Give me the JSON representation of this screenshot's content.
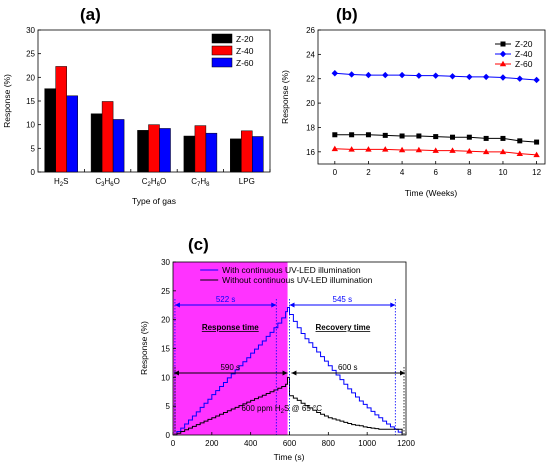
{
  "chart_data": [
    {
      "panel": "(a)",
      "type": "bar",
      "xlabel": "Type of gas",
      "ylabel": "Response (%)",
      "ylim": [
        0,
        30
      ],
      "yticks": [
        "0",
        "5",
        "10",
        "15",
        "20",
        "25",
        "30"
      ],
      "categories": [
        {
          "base": "H",
          "sub1": "2",
          "mid": "S",
          "sub2": "",
          "tail": ""
        },
        {
          "base": "C",
          "sub1": "3",
          "mid": "H",
          "sub2": "6",
          "tail": "O"
        },
        {
          "base": "C",
          "sub1": "2",
          "mid": "H",
          "sub2": "6",
          "tail": "O"
        },
        {
          "base": "C",
          "sub1": "7",
          "mid": "H",
          "sub2": "8",
          "tail": ""
        },
        {
          "base": "LPG",
          "sub1": "",
          "mid": "",
          "sub2": "",
          "tail": ""
        }
      ],
      "legend_position": "top-right",
      "series": [
        {
          "name": "Z-20",
          "color": "#000000",
          "values": [
            17.6,
            12.3,
            8.8,
            7.6,
            7.0
          ]
        },
        {
          "name": "Z-40",
          "color": "#ff0000",
          "values": [
            22.3,
            14.9,
            10.0,
            9.8,
            8.7
          ]
        },
        {
          "name": "Z-60",
          "color": "#0000ff",
          "values": [
            16.1,
            11.1,
            9.2,
            8.2,
            7.5
          ]
        }
      ]
    },
    {
      "panel": "(b)",
      "type": "line",
      "xlabel": "Time (Weeks)",
      "ylabel": "Response (%)",
      "xlim": [
        -1,
        12.5
      ],
      "ylim": [
        15,
        26
      ],
      "xticks": [
        "0",
        "2",
        "4",
        "6",
        "8",
        "10",
        "12"
      ],
      "yticks": [
        "16",
        "18",
        "20",
        "22",
        "24",
        "26"
      ],
      "legend_position": "top-right",
      "series": [
        {
          "name": "Z-20",
          "color": "#000000",
          "marker": "square",
          "x": [
            0,
            1,
            2,
            3,
            4,
            5,
            6,
            7,
            8,
            9,
            10,
            11,
            12
          ],
          "y": [
            17.4,
            17.4,
            17.4,
            17.35,
            17.3,
            17.3,
            17.25,
            17.2,
            17.2,
            17.1,
            17.1,
            16.9,
            16.8
          ]
        },
        {
          "name": "Z-40",
          "color": "#0000ff",
          "marker": "diamond",
          "x": [
            0,
            1,
            2,
            3,
            4,
            5,
            6,
            7,
            8,
            9,
            10,
            11,
            12
          ],
          "y": [
            22.45,
            22.35,
            22.3,
            22.3,
            22.3,
            22.25,
            22.25,
            22.2,
            22.15,
            22.15,
            22.1,
            22.0,
            21.9
          ]
        },
        {
          "name": "Z-60",
          "color": "#ff0000",
          "marker": "triangle",
          "x": [
            0,
            1,
            2,
            3,
            4,
            5,
            6,
            7,
            8,
            9,
            10,
            11,
            12
          ],
          "y": [
            16.25,
            16.2,
            16.2,
            16.2,
            16.15,
            16.15,
            16.1,
            16.1,
            16.05,
            16.0,
            16.0,
            15.85,
            15.75
          ]
        }
      ]
    },
    {
      "panel": "(c)",
      "type": "line",
      "xlabel": "Time (s)",
      "ylabel": "Response (%)",
      "xlim": [
        0,
        1200
      ],
      "ylim": [
        0,
        30
      ],
      "xticks": [
        "0",
        "200",
        "400",
        "600",
        "800",
        "1000",
        "1200"
      ],
      "yticks": [
        "0",
        "5",
        "10",
        "15",
        "20",
        "25",
        "30"
      ],
      "highlight_region": {
        "x_start": 0,
        "x_end": 590,
        "color": "#ff33ff"
      },
      "legend_position": "top-right",
      "annotations": {
        "response_time_blue": "522 s",
        "recovery_time_blue": "545 s",
        "response_time_black": "590 s",
        "recovery_time_black": "600 s",
        "response_label": "Response time",
        "recovery_label": "Recovery time",
        "condition_prefix": "600 ppm H",
        "condition_sub": "2",
        "condition_suffix": "S @ 65 °C"
      },
      "series": [
        {
          "name": "With continuous UV-LED illumination",
          "color": "#0000ff",
          "x": [
            0,
            20,
            40,
            60,
            80,
            100,
            120,
            140,
            160,
            180,
            200,
            220,
            240,
            260,
            280,
            300,
            320,
            340,
            360,
            380,
            400,
            420,
            440,
            460,
            480,
            500,
            520,
            540,
            560,
            580,
            590,
            600,
            620,
            640,
            660,
            680,
            700,
            720,
            740,
            760,
            780,
            800,
            820,
            840,
            860,
            880,
            900,
            920,
            940,
            960,
            980,
            1000,
            1020,
            1040,
            1060,
            1080,
            1100,
            1120,
            1140,
            1160,
            1180
          ],
          "y": [
            0.0,
            0.6,
            1.2,
            1.9,
            2.6,
            3.3,
            4.0,
            4.8,
            5.5,
            6.2,
            7.0,
            7.7,
            8.4,
            9.1,
            9.9,
            10.6,
            11.3,
            12.0,
            12.7,
            13.4,
            14.2,
            14.9,
            15.6,
            16.3,
            17.1,
            17.8,
            18.6,
            19.4,
            20.3,
            21.4,
            22.1,
            20.9,
            19.7,
            18.6,
            17.6,
            16.7,
            16.0,
            15.2,
            14.4,
            13.6,
            12.8,
            12.0,
            11.2,
            10.4,
            9.6,
            8.8,
            8.0,
            7.3,
            6.6,
            5.9,
            5.3,
            4.7,
            4.1,
            3.5,
            3.0,
            2.4,
            1.9,
            1.4,
            1.0,
            0.5,
            0.0
          ]
        },
        {
          "name": "Without continuous UV-LED illumination",
          "color": "#000000",
          "x": [
            0,
            20,
            40,
            60,
            80,
            100,
            120,
            140,
            160,
            180,
            200,
            220,
            240,
            260,
            280,
            300,
            320,
            340,
            360,
            380,
            400,
            420,
            440,
            460,
            480,
            500,
            520,
            540,
            560,
            580,
            590,
            600,
            620,
            640,
            660,
            680,
            700,
            720,
            740,
            760,
            780,
            800,
            820,
            840,
            860,
            880,
            900,
            920,
            940,
            960,
            980,
            1000,
            1020,
            1040,
            1060,
            1080,
            1100,
            1120,
            1140,
            1160,
            1180
          ],
          "y": [
            0.0,
            0.3,
            0.6,
            0.9,
            1.2,
            1.5,
            1.8,
            2.1,
            2.4,
            2.7,
            3.0,
            3.3,
            3.6,
            3.9,
            4.2,
            4.5,
            4.8,
            5.1,
            5.4,
            5.7,
            6.0,
            6.3,
            6.6,
            6.9,
            7.2,
            7.5,
            7.8,
            8.1,
            8.4,
            8.8,
            10.0,
            6.8,
            6.4,
            6.0,
            5.5,
            5.1,
            4.7,
            4.3,
            3.9,
            3.6,
            3.3,
            3.0,
            2.8,
            2.6,
            2.4,
            2.2,
            2.0,
            1.8,
            1.7,
            1.6,
            1.4,
            1.3,
            1.2,
            1.1,
            1.0,
            1.0,
            1.0,
            1.0,
            1.0,
            1.0,
            0.0
          ]
        }
      ]
    }
  ]
}
